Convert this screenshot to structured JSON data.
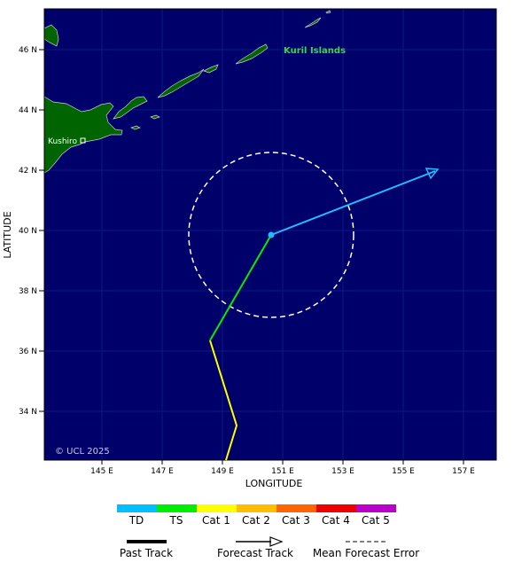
{
  "map": {
    "ocean_color": "#00006b",
    "land_color": "#006400",
    "copyright": "© UCL 2025",
    "x_axis_label": "LONGITUDE",
    "y_axis_label": "LATITUDE",
    "lon_ticks": [
      "145 E",
      "147 E",
      "149 E",
      "151 E",
      "153 E",
      "155 E",
      "157 E"
    ],
    "lat_ticks": [
      "46 N",
      "44 N",
      "42 N",
      "40 N",
      "38 N",
      "36 N",
      "34 N"
    ],
    "place_labels": {
      "kuril": "Kuril Islands",
      "kushiro": "Kushiro"
    },
    "kuril_label_color": "#33dd33"
  },
  "track": {
    "past_color": "#ffff00",
    "ts_color": "#00ee00",
    "forecast_color": "#22bbff",
    "cone_color": "#ffffff"
  },
  "legend": {
    "categories": [
      {
        "label": "TD",
        "color": "#00bfff"
      },
      {
        "label": "TS",
        "color": "#00ee00"
      },
      {
        "label": "Cat 1",
        "color": "#ffff00"
      },
      {
        "label": "Cat 2",
        "color": "#ffbf00"
      },
      {
        "label": "Cat 3",
        "color": "#ff6600"
      },
      {
        "label": "Cat 4",
        "color": "#ee0000"
      },
      {
        "label": "Cat 5",
        "color": "#bb00cc"
      }
    ],
    "past_track": "Past Track",
    "forecast_track": "Forecast Track",
    "mean_forecast_error": "Mean Forecast Error"
  }
}
